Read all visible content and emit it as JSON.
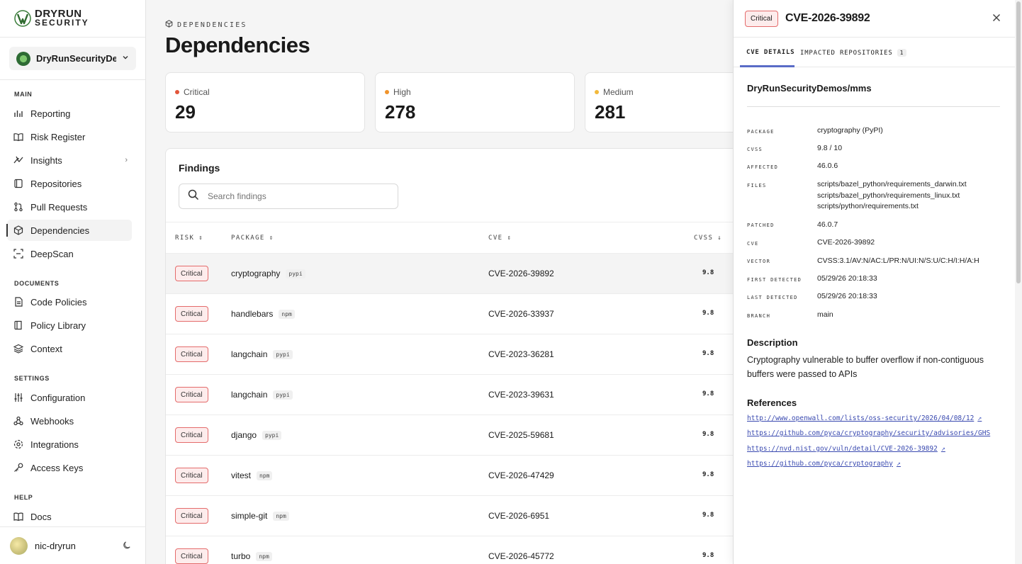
{
  "brand": {
    "line1": "DRYRUN",
    "line2": "SECURITY"
  },
  "org": {
    "name": "DryRunSecurityDe..."
  },
  "nav": {
    "main_label": "MAIN",
    "main": [
      {
        "label": "Reporting",
        "icon": "reporting-icon"
      },
      {
        "label": "Risk Register",
        "icon": "risk-register-icon"
      },
      {
        "label": "Insights",
        "icon": "insights-icon"
      },
      {
        "label": "Repositories",
        "icon": "repositories-icon"
      },
      {
        "label": "Pull Requests",
        "icon": "pull-requests-icon"
      },
      {
        "label": "Dependencies",
        "icon": "dependencies-icon"
      },
      {
        "label": "DeepScan",
        "icon": "deepscan-icon"
      }
    ],
    "documents_label": "DOCUMENTS",
    "documents": [
      {
        "label": "Code Policies"
      },
      {
        "label": "Policy Library"
      },
      {
        "label": "Context"
      }
    ],
    "settings_label": "SETTINGS",
    "settings": [
      {
        "label": "Configuration"
      },
      {
        "label": "Webhooks"
      },
      {
        "label": "Integrations"
      },
      {
        "label": "Access Keys"
      }
    ],
    "help_label": "HELP",
    "help": [
      {
        "label": "Docs"
      }
    ]
  },
  "user": {
    "name": "nic-dryrun"
  },
  "page": {
    "breadcrumb": "DEPENDENCIES",
    "title": "Dependencies",
    "cards": [
      {
        "label": "Critical",
        "value": "29",
        "color": "#e2553a"
      },
      {
        "label": "High",
        "value": "278",
        "color": "#f0932b"
      },
      {
        "label": "Medium",
        "value": "281",
        "color": "#f2b93b"
      }
    ],
    "findings_title": "Findings",
    "search_placeholder": "Search findings",
    "columns": {
      "risk": "RISK",
      "package": "PACKAGE",
      "cve": "CVE",
      "cvss": "CVSS"
    },
    "rows": [
      {
        "risk": "Critical",
        "package": "cryptography",
        "eco": "pypi",
        "cve": "CVE-2026-39892",
        "cvss": "9.8"
      },
      {
        "risk": "Critical",
        "package": "handlebars",
        "eco": "npm",
        "cve": "CVE-2026-33937",
        "cvss": "9.8"
      },
      {
        "risk": "Critical",
        "package": "langchain",
        "eco": "pypi",
        "cve": "CVE-2023-36281",
        "cvss": "9.8"
      },
      {
        "risk": "Critical",
        "package": "langchain",
        "eco": "pypi",
        "cve": "CVE-2023-39631",
        "cvss": "9.8"
      },
      {
        "risk": "Critical",
        "package": "django",
        "eco": "pypi",
        "cve": "CVE-2025-59681",
        "cvss": "9.8"
      },
      {
        "risk": "Critical",
        "package": "vitest",
        "eco": "npm",
        "cve": "CVE-2026-47429",
        "cvss": "9.8"
      },
      {
        "risk": "Critical",
        "package": "simple-git",
        "eco": "npm",
        "cve": "CVE-2026-6951",
        "cvss": "9.8"
      },
      {
        "risk": "Critical",
        "package": "turbo",
        "eco": "npm",
        "cve": "CVE-2026-45772",
        "cvss": "9.8"
      }
    ]
  },
  "panel": {
    "badge": "Critical",
    "title": "CVE-2026-39892",
    "tabs": {
      "details": "CVE DETAILS",
      "impacted": "IMPACTED REPOSITORIES",
      "impacted_count": "1"
    },
    "repo": "DryRunSecurityDemos/mms",
    "fields": {
      "package_k": "PACKAGE",
      "package_v": "cryptography (PyPI)",
      "cvss_k": "CVSS",
      "cvss_v": "9.8 / 10",
      "affected_k": "AFFECTED",
      "affected_v": "46.0.6",
      "files_k": "FILES",
      "files_v1": "scripts/bazel_python/requirements_darwin.txt",
      "files_v2": "scripts/bazel_python/requirements_linux.txt",
      "files_v3": "scripts/python/requirements.txt",
      "patched_k": "PATCHED",
      "patched_v": "46.0.7",
      "cve_k": "CVE",
      "cve_v": "CVE-2026-39892",
      "vector_k": "VECTOR",
      "vector_v": "CVSS:3.1/AV:N/AC:L/PR:N/UI:N/S:U/C:H/I:H/A:H",
      "first_k": "FIRST DETECTED",
      "first_v": "05/29/26 20:18:33",
      "last_k": "LAST DETECTED",
      "last_v": "05/29/26 20:18:33",
      "branch_k": "BRANCH",
      "branch_v": "main"
    },
    "description_title": "Description",
    "description": "Cryptography vulnerable to buffer overflow if non-contiguous buffers were passed to APIs",
    "references_title": "References",
    "references": [
      "http://www.openwall.com/lists/oss-security/2026/04/08/12",
      "https://github.com/pyca/cryptography/security/advisories/GHS",
      "https://nvd.nist.gov/vuln/detail/CVE-2026-39892",
      "https://github.com/pyca/cryptography"
    ]
  }
}
